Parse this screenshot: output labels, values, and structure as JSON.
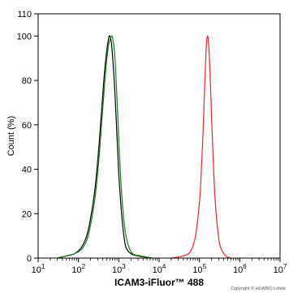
{
  "chart_data": {
    "type": "line",
    "xlabel": "ICAM3-iFluor™ 488",
    "ylabel": "Count  (%)",
    "xscale": "log",
    "xlim": [
      10,
      10000000
    ],
    "ylim": [
      0,
      110
    ],
    "grid": false,
    "x_ticks": [
      10,
      100,
      1000,
      10000,
      100000,
      1000000,
      10000000
    ],
    "x_tick_base": "10",
    "x_tick_exps": [
      "1",
      "2",
      "3",
      "4",
      "5",
      "6",
      "7"
    ],
    "y_ticks": [
      0,
      20,
      40,
      60,
      80,
      100,
      110
    ],
    "series": [
      {
        "color": "#000000",
        "x": [
          30,
          50,
          80,
          120,
          160,
          200,
          260,
          320,
          380,
          440,
          500,
          560,
          600,
          640,
          680,
          720,
          800,
          900,
          1000,
          1150,
          1300,
          1500,
          2000,
          3000,
          6000
        ],
        "y": [
          0,
          1,
          2,
          5,
          10,
          18,
          32,
          50,
          68,
          83,
          93,
          99,
          100,
          98,
          94,
          88,
          75,
          55,
          38,
          22,
          12,
          5,
          2,
          1,
          0
        ]
      },
      {
        "color": "#1d7a1d",
        "x": [
          30,
          50,
          80,
          120,
          160,
          200,
          260,
          320,
          380,
          440,
          500,
          560,
          620,
          680,
          720,
          780,
          850,
          950,
          1050,
          1200,
          1400,
          1700,
          2200,
          3500,
          7000
        ],
        "y": [
          0,
          1,
          2,
          4,
          8,
          15,
          28,
          44,
          62,
          77,
          89,
          96,
          99,
          100,
          98,
          93,
          82,
          63,
          45,
          27,
          14,
          6,
          2,
          1,
          0
        ]
      },
      {
        "color": "#e8262b",
        "x": [
          20000,
          40000,
          60000,
          80000,
          100000,
          110000,
          125000,
          140000,
          150000,
          160000,
          170000,
          185000,
          200000,
          220000,
          250000,
          300000,
          350000,
          450000,
          600000
        ],
        "y": [
          0,
          1,
          3,
          10,
          25,
          37,
          60,
          85,
          97,
          100,
          96,
          82,
          64,
          44,
          24,
          9,
          4,
          1,
          0
        ]
      }
    ]
  },
  "copyright": "Copyright © HUABIO Limite"
}
